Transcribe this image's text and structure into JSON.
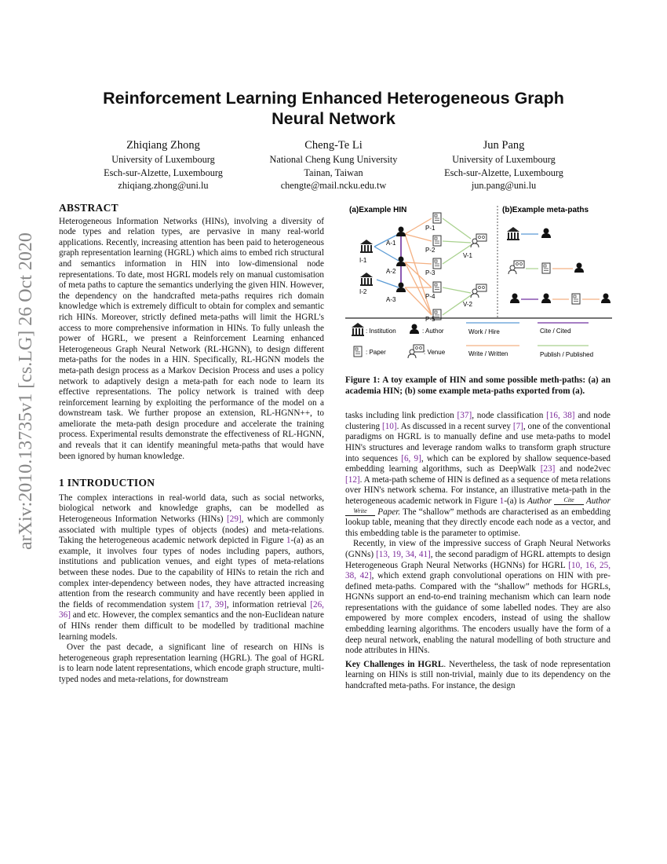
{
  "title_lines": [
    "Reinforcement Learning Enhanced Heterogeneous Graph",
    "Neural Network"
  ],
  "authors": [
    {
      "name": "Zhiqiang Zhong",
      "affil": "University of Luxembourg",
      "place": "Esch-sur-Alzette, Luxembourg",
      "email": "zhiqiang.zhong@uni.lu"
    },
    {
      "name": "Cheng-Te Li",
      "affil": "National Cheng Kung University",
      "place": "Tainan, Taiwan",
      "email": "chengte@mail.ncku.edu.tw"
    },
    {
      "name": "Jun Pang",
      "affil": "University of Luxembourg",
      "place": "Esch-sur-Alzette, Luxembourg",
      "email": "jun.pang@uni.lu"
    }
  ],
  "arxiv_label": "arXiv:2010.13735v1  [cs.LG]  26 Oct 2020",
  "abstract": {
    "heading": "ABSTRACT",
    "text": "Heterogeneous Information Networks (HINs), involving a diversity of node types and relation types, are pervasive in many real-world applications. Recently, increasing attention has been paid to heterogeneous graph representation learning (HGRL) which aims to embed rich structural and semantics information in HIN into low-dimensional node representations. To date, most HGRL models rely on manual customisation of meta paths to capture the semantics underlying the given HIN. However, the dependency on the handcrafted meta-paths requires rich domain knowledge which is extremely difficult to obtain for complex and semantic rich HINs. Moreover, strictly defined meta-paths will limit the HGRL's access to more comprehensive information in HINs. To fully unleash the power of HGRL, we present a Reinforcement Learning enhanced Heterogeneous Graph Neural Network (RL-HGNN), to design different meta-paths for the nodes in a HIN. Specifically, RL-HGNN models the meta-path design process as a Markov Decision Process and uses a policy network to adaptively design a meta-path for each node to learn its effective representations. The policy network is trained with deep reinforcement learning by exploiting the performance of the model on a downstream task. We further propose an extension, RL-HGNN++, to ameliorate the meta-path design procedure and accelerate the training process. Experimental results demonstrate the effectiveness of RL-HGNN, and reveals that it can identify meaningful meta-paths that would have been ignored by human knowledge."
  },
  "intro": {
    "heading": "1   INTRODUCTION",
    "paragraphs": [
      "The complex interactions in real-world data, such as social networks, biological network and knowledge graphs, can be modelled as Heterogeneous Information Networks (HINs) [29], which are commonly associated with multiple types of objects (nodes) and meta-relations. Taking the heterogeneous academic network depicted in Figure 1-(a) as an example, it involves four types of nodes including papers, authors, institutions and publication venues, and eight types of meta-relations between these nodes. Due to the capability of HINs to retain the rich and complex inter-dependency between nodes, they have attracted increasing attention from the research community and have recently been applied in the fields of recommendation system [17, 39], information retrieval [26, 36] and etc. However, the complex semantics and the non-Euclidean nature of HINs render them difficult to be modelled by traditional machine learning models.",
      "Over the past decade, a significant line of research on HINs is heterogeneous graph representation learning (HGRL). The goal of HGRL is to learn node latent representations, which encode graph structure, multi-typed nodes and meta-relations, for downstream"
    ]
  },
  "figure": {
    "panel_a": "(a)Example HIN",
    "panel_b": "(b)Example meta-paths",
    "nodes": [
      "I-1",
      "I-2",
      "A-1",
      "A-2",
      "A-3",
      "P-1",
      "P-2",
      "P-3",
      "P-4",
      "P-5",
      "V-1",
      "V-2"
    ],
    "legend": {
      "institution": ": Institution",
      "author": ": Author",
      "paper": ": Paper",
      "venue": ": Venue",
      "work": "Work / Hire",
      "cite": "Cite / Cited",
      "write": "Write / Written",
      "publish": "Publish / Published"
    },
    "colors": {
      "work": "#5b9bd5",
      "cite": "#7030a0",
      "write": "#f4b183",
      "publish": "#a9d18e"
    },
    "caption": "Figure 1: A toy example of HIN and some possible meth-paths: (a) an academia HIN; (b) some example meta-paths exported from (a)."
  },
  "right": {
    "p1_before": "tasks including link prediction [37], node classification [16, 38] and node clustering [10]. As discussed in a recent survey [7], one of the conventional paradigms on HGRL is to manually define and use meta-paths to model HIN's structures and leverage random walks to transform graph structure into sequences [6, 9], which can be explored by shallow sequence-based embedding learning algorithms, such as DeepWalk [23] and node2vec [12]. A meta-path scheme of HIN is defined as a sequence of meta relations over HIN's network schema. For instance, an illustrative meta-path in the heterogeneous academic network in Figure 1-(a) is",
    "math": {
      "a1": "Author",
      "r1": "Cite",
      "a2": "Author",
      "r2": "Write",
      "p": "Paper."
    },
    "p1_after": "The “shallow” methods are characterised as an embedding lookup table, meaning that they directly encode each node as a vector, and this embedding table is the parameter to optimise.",
    "p2": "Recently, in view of the impressive success of Graph Neural Networks (GNNs) [13, 19, 34, 41], the second paradigm of HGRL attempts to design Heterogeneous Graph Neural Networks (HGNNs) for HGRL [10, 16, 25, 38, 42], which extend graph convolutional operations on HIN with pre-defined meta-paths. Compared with the “shallow” methods for HGRLs, HGNNs support an end-to-end training mechanism which can learn node representations with the guidance of some labelled nodes. They are also empowered by more complex encoders, instead of using the shallow embedding learning algorithms. The encoders usually have the form of a deep neural network, enabling the natural modelling of both structure and node attributes in HINs.",
    "p3_bold": "Key Challenges in HGRL",
    "p3": ". Nevertheless, the task of node representation learning on HINs is still non-trivial, mainly due to its dependency on the handcrafted meta-paths. For instance, the design"
  }
}
